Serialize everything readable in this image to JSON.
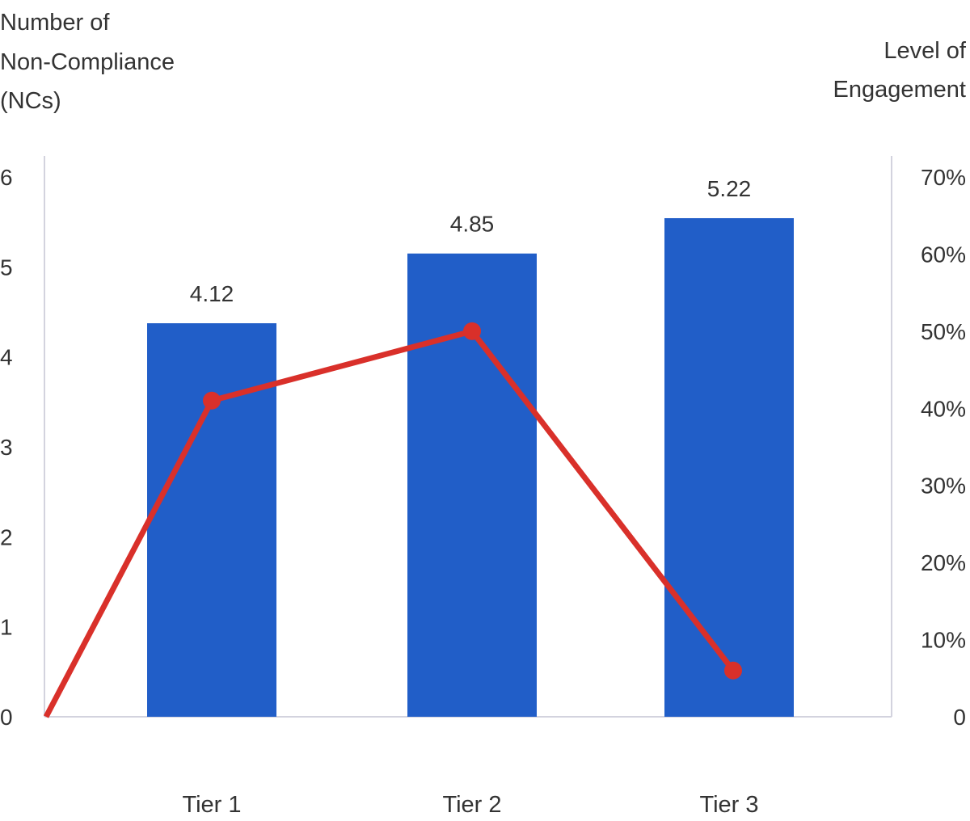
{
  "chart_data": {
    "type": "bar+line",
    "categories": [
      "Tier 1",
      "Tier 2",
      "Tier 3"
    ],
    "ylabel_left": [
      "Number of",
      "Non-Compliance",
      "(NCs)"
    ],
    "ylabel_right": [
      "Level of",
      "Engagement"
    ],
    "left_ticks": [
      "0",
      "1",
      "2",
      "3",
      "4",
      "5",
      "6"
    ],
    "right_ticks": [
      "0",
      "10%",
      "20%",
      "30%",
      "40%",
      "50%",
      "60%",
      "70%"
    ],
    "ylim_left": [
      0,
      6
    ],
    "ylim_right": [
      0,
      70
    ],
    "bars": {
      "values": [
        4.12,
        4.85,
        5.22
      ],
      "labels": [
        "4.12",
        "4.85",
        "5.22"
      ],
      "color": "#215ec8"
    },
    "line": {
      "start_value": 0,
      "values": [
        41,
        50,
        6
      ],
      "unit": "%",
      "color": "#d9302a"
    },
    "grid": false,
    "legend": "none"
  }
}
